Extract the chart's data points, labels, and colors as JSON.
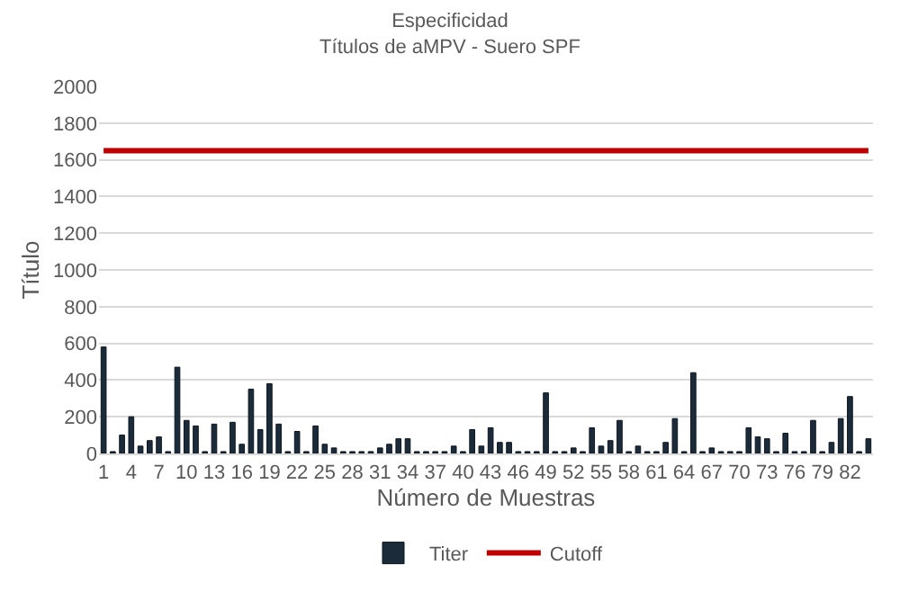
{
  "chart_data": {
    "type": "bar",
    "title": "Especificidad",
    "subtitle": "Títulos de aMPV - Suero SPF",
    "xlabel": "Número de Muestras",
    "ylabel": "Título",
    "categories": [
      "1",
      null,
      null,
      "4",
      null,
      null,
      "7",
      null,
      null,
      "10",
      null,
      null,
      "13",
      null,
      null,
      "16",
      null,
      null,
      "19",
      null,
      null,
      "22",
      null,
      null,
      "25",
      null,
      null,
      "28",
      null,
      null,
      "31",
      null,
      null,
      "34",
      null,
      null,
      "37",
      null,
      null,
      "40",
      null,
      null,
      "43",
      null,
      null,
      "46",
      null,
      null,
      "49",
      null,
      null,
      "52",
      null,
      null,
      "55",
      null,
      null,
      "58",
      null,
      null,
      "61",
      null,
      null,
      "64",
      null,
      null,
      "67",
      null,
      null,
      "70",
      null,
      null,
      "73",
      null,
      null,
      "76",
      null,
      null,
      "79",
      null,
      null,
      "82",
      null,
      null
    ],
    "series": [
      {
        "name": "Titer",
        "color": "#1c2b3a",
        "values": [
          580,
          10,
          100,
          200,
          40,
          70,
          90,
          10,
          470,
          180,
          150,
          10,
          160,
          10,
          170,
          50,
          350,
          130,
          380,
          160,
          10,
          120,
          10,
          150,
          50,
          30,
          10,
          10,
          10,
          10,
          30,
          50,
          80,
          80,
          10,
          10,
          10,
          10,
          40,
          10,
          130,
          40,
          140,
          60,
          60,
          10,
          10,
          10,
          330,
          10,
          10,
          30,
          10,
          140,
          40,
          70,
          180,
          10,
          40,
          10,
          10,
          60,
          190,
          10,
          440,
          10,
          30,
          10,
          10,
          10,
          140,
          90,
          80,
          10,
          110,
          10,
          10,
          180,
          10,
          60,
          190,
          310,
          10,
          80
        ]
      },
      {
        "name": "Cutoff",
        "type": "line",
        "color": "#c00000",
        "values": [
          1650,
          1650,
          1650,
          1650,
          1650,
          1650,
          1650,
          1650,
          1650,
          1650,
          1650,
          1650,
          1650,
          1650,
          1650,
          1650,
          1650,
          1650,
          1650,
          1650,
          1650,
          1650,
          1650,
          1650,
          1650,
          1650,
          1650,
          1650,
          1650,
          1650,
          1650,
          1650,
          1650,
          1650,
          1650,
          1650,
          1650,
          1650,
          1650,
          1650,
          1650,
          1650,
          1650,
          1650,
          1650,
          1650,
          1650,
          1650,
          1650,
          1650,
          1650,
          1650,
          1650,
          1650,
          1650,
          1650,
          1650,
          1650,
          1650,
          1650,
          1650,
          1650,
          1650,
          1650,
          1650,
          1650,
          1650,
          1650,
          1650,
          1650,
          1650,
          1650,
          1650,
          1650,
          1650,
          1650,
          1650,
          1650,
          1650,
          1650,
          1650,
          1650,
          1650,
          1650
        ]
      }
    ],
    "ylim": [
      0,
      2000
    ],
    "yticks": [
      0,
      200,
      400,
      600,
      800,
      1000,
      1200,
      1400,
      1600,
      1800,
      2000
    ],
    "grid": "y",
    "legend": "bottom",
    "marker": "none",
    "line_style": "solid"
  }
}
